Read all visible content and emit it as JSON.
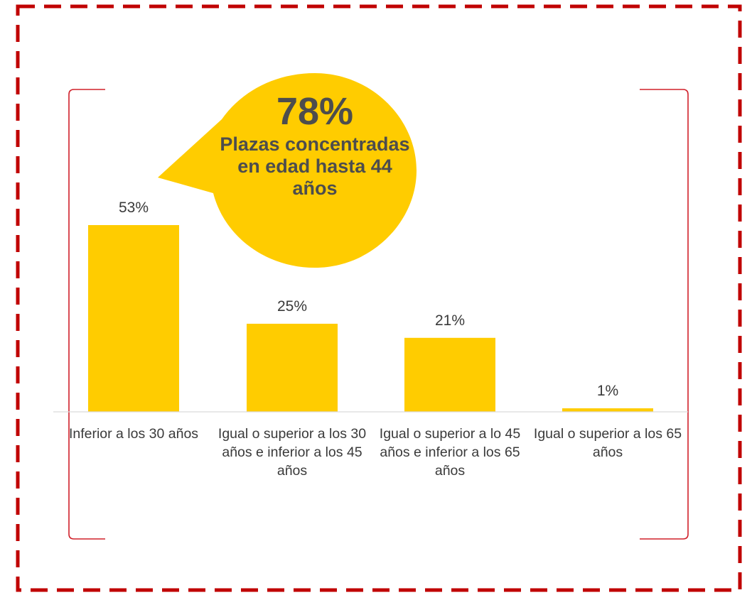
{
  "colors": {
    "bar": "#FFCC00",
    "frame": "#C00000",
    "bracket": "#D0202A",
    "baseline": "#D9D9D9",
    "callout_text": "#4D4D4D",
    "label_text": "#3A3A3A"
  },
  "callout": {
    "value": "78%",
    "label": "Plazas concentradas en edad hasta 44 años"
  },
  "chart_data": {
    "type": "bar",
    "categories": [
      "Inferior a los 30 años",
      "Igual o superior a los 30 años e inferior a los 45 años",
      "Igual o superior a lo 45 años e inferior a los 65 años",
      "Igual o superior a los 65 años"
    ],
    "values": [
      53,
      25,
      21,
      1
    ],
    "data_labels": [
      "53%",
      "25%",
      "21%",
      "1%"
    ],
    "unit": "%",
    "ylim": [
      0,
      60
    ],
    "grid": false,
    "legend": "none"
  }
}
